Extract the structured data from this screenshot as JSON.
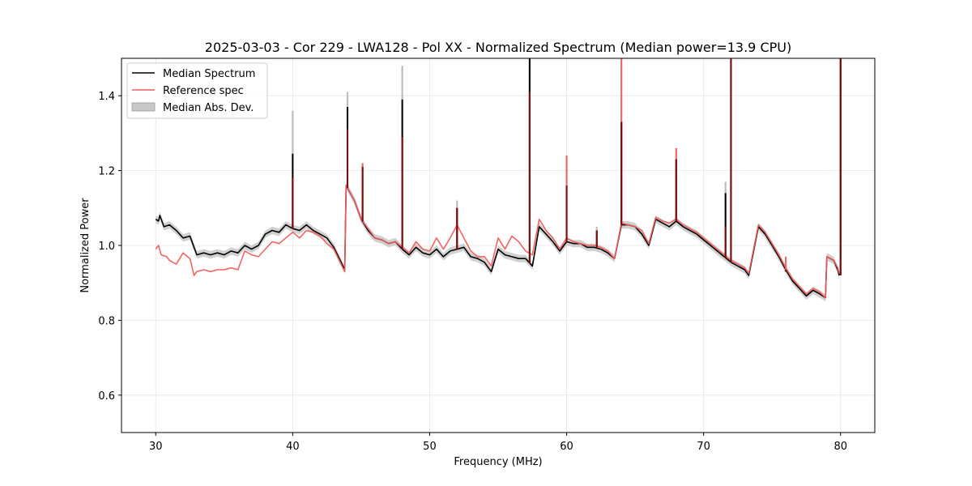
{
  "chart_data": {
    "type": "line",
    "title": "2025-03-03 - Cor 229 - LWA128 - Pol XX - Normalized Spectrum (Median power=13.9 CPU)",
    "xlabel": "Frequency (MHz)",
    "ylabel": "Normalized Power",
    "xlim": [
      27.5,
      82.5
    ],
    "ylim": [
      0.5,
      1.5
    ],
    "xticks": [
      30,
      40,
      50,
      60,
      70,
      80
    ],
    "yticks": [
      0.6,
      0.8,
      1.0,
      1.2,
      1.4
    ],
    "xtick_labels": [
      "30",
      "40",
      "50",
      "60",
      "70",
      "80"
    ],
    "ytick_labels": [
      "0.6",
      "0.8",
      "1.0",
      "1.2",
      "1.4"
    ],
    "grid": true,
    "legend_position": "top-left",
    "legend": [
      "Median Spectrum",
      "Reference spec",
      "Median Abs. Dev."
    ],
    "colors": {
      "median": "#000000",
      "reference": "#f25c5c",
      "mad_fill": "#c8c8c8",
      "spike_overlap": "#7a0c0c"
    },
    "series": [
      {
        "name": "Median Spectrum",
        "x": [
          30.0,
          30.2,
          30.3,
          30.6,
          31.0,
          31.5,
          32.0,
          32.5,
          33.0,
          33.5,
          34.0,
          34.5,
          35.0,
          35.5,
          36.0,
          36.5,
          37.0,
          37.5,
          38.0,
          38.5,
          39.0,
          39.5,
          40.0,
          40.5,
          41.0,
          41.5,
          42.0,
          42.5,
          43.0,
          43.8,
          43.9,
          44.5,
          45.0,
          45.5,
          46.0,
          46.5,
          47.0,
          47.5,
          48.0,
          48.5,
          49.0,
          49.5,
          50.0,
          50.5,
          51.0,
          51.5,
          52.0,
          52.5,
          53.0,
          53.5,
          54.0,
          54.5,
          55.0,
          55.5,
          56.0,
          56.5,
          57.0,
          57.5,
          58.0,
          58.5,
          59.0,
          59.5,
          60.0,
          60.5,
          61.0,
          61.5,
          62.0,
          62.5,
          63.0,
          63.5,
          64.0,
          64.5,
          65.0,
          65.5,
          66.0,
          66.5,
          67.0,
          67.5,
          68.0,
          68.5,
          69.0,
          69.5,
          70.0,
          70.5,
          71.0,
          71.5,
          72.0,
          72.5,
          73.0,
          73.3,
          74.0,
          74.5,
          75.0,
          75.5,
          76.0,
          76.5,
          77.0,
          77.5,
          78.0,
          78.5,
          78.9,
          79.0,
          79.5,
          79.8,
          79.9
        ],
        "values": [
          1.07,
          1.065,
          1.08,
          1.05,
          1.055,
          1.04,
          1.02,
          1.025,
          0.975,
          0.98,
          0.975,
          0.98,
          0.975,
          0.985,
          0.98,
          1.0,
          0.99,
          1.0,
          1.03,
          1.04,
          1.035,
          1.055,
          1.045,
          1.04,
          1.055,
          1.04,
          1.03,
          1.02,
          0.995,
          0.935,
          1.16,
          1.12,
          1.07,
          1.04,
          1.02,
          1.015,
          1.005,
          1.01,
          0.99,
          0.975,
          0.995,
          0.98,
          0.975,
          0.99,
          0.97,
          0.985,
          0.99,
          0.995,
          0.97,
          0.965,
          0.955,
          0.93,
          0.99,
          0.975,
          0.97,
          0.965,
          0.965,
          0.945,
          1.05,
          1.03,
          1.01,
          0.985,
          1.01,
          1.005,
          1.005,
          0.995,
          0.995,
          0.99,
          0.98,
          0.965,
          1.055,
          1.055,
          1.05,
          1.03,
          1.0,
          1.07,
          1.06,
          1.05,
          1.065,
          1.05,
          1.04,
          1.03,
          1.015,
          1.0,
          0.985,
          0.97,
          0.955,
          0.945,
          0.935,
          0.92,
          1.05,
          1.03,
          1.0,
          0.97,
          0.935,
          0.905,
          0.885,
          0.865,
          0.88,
          0.87,
          0.86,
          0.97,
          0.96,
          0.935,
          0.92
        ]
      },
      {
        "name": "Reference spec",
        "x": [
          30.0,
          30.2,
          30.4,
          30.8,
          31.0,
          31.5,
          32.0,
          32.5,
          32.8,
          33.0,
          33.5,
          34.0,
          34.5,
          35.0,
          35.5,
          36.0,
          36.5,
          37.0,
          37.5,
          38.0,
          38.5,
          39.0,
          39.5,
          40.0,
          40.5,
          41.0,
          41.5,
          42.0,
          42.5,
          43.0,
          43.8,
          43.9,
          44.5,
          45.0,
          45.5,
          46.0,
          46.5,
          47.0,
          47.5,
          48.0,
          48.5,
          49.0,
          49.5,
          50.0,
          50.5,
          51.0,
          51.5,
          52.0,
          52.5,
          53.0,
          53.5,
          54.0,
          54.5,
          55.0,
          55.5,
          56.0,
          56.5,
          57.0,
          57.5,
          58.0,
          58.5,
          59.0,
          59.5,
          60.0,
          60.5,
          61.0,
          61.5,
          62.0,
          62.5,
          63.0,
          63.5,
          64.0,
          64.5,
          65.0,
          65.5,
          66.0,
          66.5,
          67.0,
          67.5,
          68.0,
          68.5,
          69.0,
          69.5,
          70.0,
          70.5,
          71.0,
          71.5,
          72.0,
          72.5,
          73.0,
          73.3,
          74.0,
          74.5,
          75.0,
          75.5,
          76.0,
          76.5,
          77.0,
          77.5,
          78.0,
          78.5,
          78.9,
          79.0,
          79.5,
          79.8,
          79.9
        ],
        "values": [
          0.99,
          1.0,
          0.975,
          0.97,
          0.96,
          0.95,
          0.98,
          0.965,
          0.92,
          0.93,
          0.935,
          0.93,
          0.935,
          0.935,
          0.94,
          0.935,
          0.985,
          0.975,
          0.97,
          0.99,
          1.01,
          1.005,
          1.02,
          1.035,
          1.02,
          1.04,
          1.035,
          1.025,
          1.005,
          0.99,
          0.93,
          1.16,
          1.12,
          1.07,
          1.045,
          1.02,
          1.015,
          1.005,
          1.01,
          0.995,
          0.98,
          1.01,
          0.99,
          0.985,
          1.02,
          0.99,
          1.02,
          1.055,
          1.02,
          0.985,
          0.97,
          0.97,
          0.945,
          1.02,
          0.99,
          1.025,
          1.01,
          0.985,
          0.975,
          1.07,
          1.04,
          1.02,
          0.99,
          1.02,
          1.01,
          1.005,
          1.0,
          1.0,
          0.995,
          0.985,
          0.965,
          1.06,
          1.055,
          1.05,
          1.04,
          1.005,
          1.075,
          1.065,
          1.06,
          1.07,
          1.055,
          1.045,
          1.035,
          1.02,
          1.005,
          0.99,
          0.975,
          0.96,
          0.95,
          0.94,
          0.925,
          1.055,
          1.035,
          1.005,
          0.975,
          0.94,
          0.91,
          0.89,
          0.87,
          0.885,
          0.875,
          0.86,
          0.97,
          0.96,
          0.94,
          0.925
        ]
      }
    ],
    "spikes": [
      {
        "x": 40.0,
        "median_peak": 1.245,
        "reference_peak": 1.18,
        "mad_peak": 1.36
      },
      {
        "x": 44.0,
        "median_peak": 1.37,
        "reference_peak": 1.31,
        "mad_peak": 1.41
      },
      {
        "x": 45.1,
        "median_peak": 1.21,
        "reference_peak": 1.22,
        "mad_peak": 1.22
      },
      {
        "x": 48.0,
        "median_peak": 1.39,
        "reference_peak": 1.29,
        "mad_peak": 1.48
      },
      {
        "x": 52.0,
        "median_peak": 1.1,
        "reference_peak": 1.1,
        "mad_peak": 1.12
      },
      {
        "x": 57.3,
        "median_peak": 1.5,
        "reference_peak": 1.41,
        "mad_peak": 1.5
      },
      {
        "x": 60.0,
        "median_peak": 1.16,
        "reference_peak": 1.24,
        "mad_peak": 1.24
      },
      {
        "x": 62.2,
        "median_peak": 1.04,
        "reference_peak": 1.04,
        "mad_peak": 1.05
      },
      {
        "x": 64.0,
        "median_peak": 1.33,
        "reference_peak": 1.5,
        "mad_peak": 1.5
      },
      {
        "x": 68.0,
        "median_peak": 1.23,
        "reference_peak": 1.26,
        "mad_peak": 1.26
      },
      {
        "x": 71.6,
        "median_peak": 1.14,
        "reference_peak": 1.05,
        "mad_peak": 1.17
      },
      {
        "x": 72.0,
        "median_peak": 1.5,
        "reference_peak": 1.5,
        "mad_peak": 1.5
      },
      {
        "x": 76.0,
        "median_peak": 0.93,
        "reference_peak": 0.97,
        "mad_peak": 0.97
      },
      {
        "x": 80.0,
        "median_peak": 1.5,
        "reference_peak": 1.5,
        "mad_peak": 1.5
      }
    ],
    "mad_width": 0.01
  }
}
